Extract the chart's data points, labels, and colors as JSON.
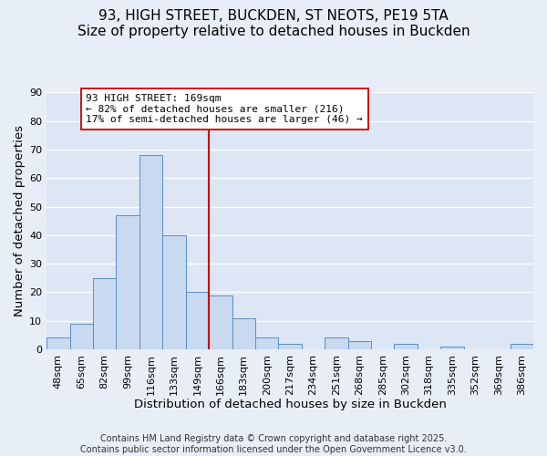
{
  "title": "93, HIGH STREET, BUCKDEN, ST NEOTS, PE19 5TA",
  "subtitle": "Size of property relative to detached houses in Buckden",
  "xlabel": "Distribution of detached houses by size in Buckden",
  "ylabel": "Number of detached properties",
  "footer_lines": [
    "Contains HM Land Registry data © Crown copyright and database right 2025.",
    "Contains public sector information licensed under the Open Government Licence v3.0."
  ],
  "bar_labels": [
    "48sqm",
    "65sqm",
    "82sqm",
    "99sqm",
    "116sqm",
    "133sqm",
    "149sqm",
    "166sqm",
    "183sqm",
    "200sqm",
    "217sqm",
    "234sqm",
    "251sqm",
    "268sqm",
    "285sqm",
    "302sqm",
    "318sqm",
    "335sqm",
    "352sqm",
    "369sqm",
    "386sqm"
  ],
  "bar_values": [
    4,
    9,
    25,
    47,
    68,
    40,
    20,
    19,
    11,
    4,
    2,
    0,
    4,
    3,
    0,
    2,
    0,
    1,
    0,
    0,
    2
  ],
  "bar_color": "#c8d9f0",
  "bar_edge_color": "#5b8ec4",
  "vline_index": 7,
  "vline_color": "#cc0000",
  "annotation_title": "93 HIGH STREET: 169sqm",
  "annotation_line1": "← 82% of detached houses are smaller (216)",
  "annotation_line2": "17% of semi-detached houses are larger (46) →",
  "ylim": [
    0,
    90
  ],
  "yticks": [
    0,
    10,
    20,
    30,
    40,
    50,
    60,
    70,
    80,
    90
  ],
  "background_color": "#e8eef8",
  "plot_bg_color": "#dce6f5",
  "grid_color": "#ffffff",
  "title_fontsize": 11,
  "subtitle_fontsize": 10,
  "axis_label_fontsize": 9.5,
  "tick_fontsize": 8,
  "annotation_fontsize": 8,
  "footer_fontsize": 7
}
